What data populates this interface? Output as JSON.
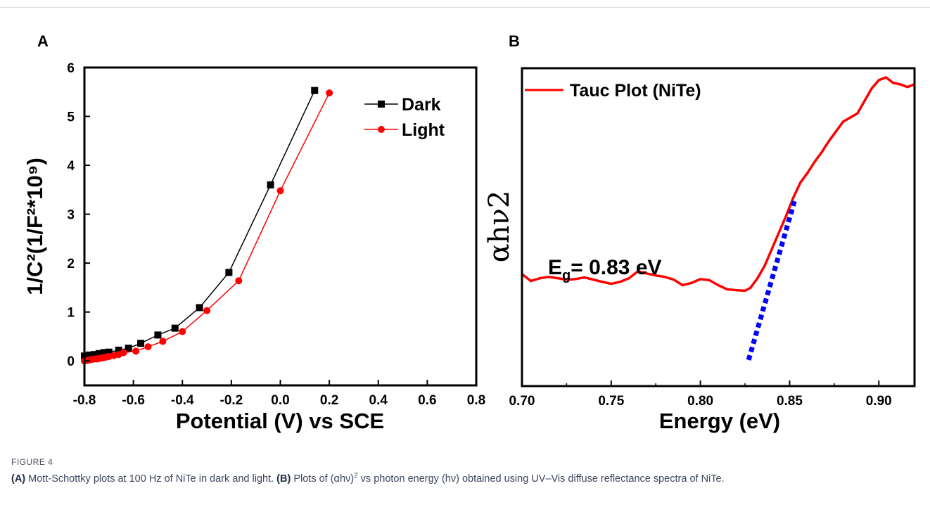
{
  "chart_data": [
    {
      "type": "line",
      "panel": "A",
      "xlabel": "Potential (V) vs SCE",
      "ylabel": "1/C²(1/F²*10⁹)",
      "xlim": [
        -0.8,
        0.8
      ],
      "ylim": [
        -0.5,
        6
      ],
      "xticks": [
        "-0.8",
        "-0.6",
        "-0.4",
        "-0.2",
        "0.0",
        "0.2",
        "0.4",
        "0.6",
        "0.8"
      ],
      "yticks": [
        "0",
        "1",
        "2",
        "3",
        "4",
        "5",
        "6"
      ],
      "legend_position": "top-right",
      "series": [
        {
          "name": "Dark",
          "color": "#000000",
          "marker": "square",
          "x": [
            -0.8,
            -0.78,
            -0.76,
            -0.74,
            -0.72,
            -0.7,
            -0.66,
            -0.62,
            -0.57,
            -0.5,
            -0.43,
            -0.33,
            -0.21,
            -0.04,
            0.14
          ],
          "y": [
            0.1,
            0.12,
            0.13,
            0.15,
            0.17,
            0.18,
            0.22,
            0.26,
            0.36,
            0.53,
            0.67,
            1.09,
            1.81,
            3.6,
            5.53
          ]
        },
        {
          "name": "Light",
          "color": "#ff0000",
          "marker": "circle",
          "x": [
            -0.8,
            -0.79,
            -0.78,
            -0.77,
            -0.76,
            -0.75,
            -0.74,
            -0.73,
            -0.72,
            -0.71,
            -0.7,
            -0.68,
            -0.66,
            -0.64,
            -0.59,
            -0.54,
            -0.48,
            -0.4,
            -0.3,
            -0.17,
            0.0,
            0.2
          ],
          "y": [
            0.0,
            0.01,
            0.02,
            0.03,
            0.04,
            0.04,
            0.05,
            0.06,
            0.07,
            0.08,
            0.09,
            0.11,
            0.13,
            0.17,
            0.2,
            0.29,
            0.4,
            0.6,
            1.03,
            1.64,
            3.48,
            5.48
          ]
        }
      ]
    },
    {
      "type": "line",
      "panel": "B",
      "xlabel": "Energy (eV)",
      "ylabel": "αhν2",
      "xlim": [
        0.7,
        0.92
      ],
      "ylim": [
        0,
        1
      ],
      "xticks": [
        "0.70",
        "0.75",
        "0.80",
        "0.85",
        "0.90"
      ],
      "yticks_shown": false,
      "legend_position": "top-left",
      "annotation": {
        "prefix": "E",
        "subscript": "g",
        "text": "= 0.83 eV"
      },
      "series": [
        {
          "name": "Tauc Plot (NiTe)",
          "color": "#ff0000",
          "x": [
            0.7,
            0.705,
            0.71,
            0.715,
            0.72,
            0.725,
            0.73,
            0.735,
            0.74,
            0.745,
            0.75,
            0.755,
            0.76,
            0.765,
            0.77,
            0.775,
            0.78,
            0.785,
            0.79,
            0.795,
            0.8,
            0.805,
            0.81,
            0.815,
            0.82,
            0.825,
            0.828,
            0.832,
            0.836,
            0.84,
            0.844,
            0.848,
            0.852,
            0.856,
            0.86,
            0.864,
            0.868,
            0.872,
            0.876,
            0.88,
            0.884,
            0.888,
            0.892,
            0.896,
            0.9,
            0.904,
            0.908,
            0.912,
            0.916,
            0.92
          ],
          "y": [
            0.29,
            0.265,
            0.275,
            0.28,
            0.275,
            0.27,
            0.272,
            0.278,
            0.27,
            0.262,
            0.255,
            0.262,
            0.275,
            0.3,
            0.292,
            0.285,
            0.28,
            0.27,
            0.25,
            0.258,
            0.272,
            0.268,
            0.25,
            0.235,
            0.232,
            0.23,
            0.24,
            0.275,
            0.32,
            0.38,
            0.44,
            0.5,
            0.565,
            0.62,
            0.655,
            0.695,
            0.73,
            0.77,
            0.805,
            0.84,
            0.855,
            0.87,
            0.915,
            0.96,
            0.99,
            1.0,
            0.98,
            0.975,
            0.965,
            0.975
          ]
        },
        {
          "name": "",
          "style": "dotted",
          "color": "#0000ff",
          "x": [
            0.827,
            0.853
          ],
          "y": [
            -0.02,
            0.56
          ]
        }
      ]
    }
  ],
  "panels": {
    "a": {
      "letter": "A"
    },
    "b": {
      "letter": "B"
    }
  },
  "caption": {
    "label": "FIGURE 4",
    "a_ref": "(A)",
    "a_text": " Mott-Schottky plots at 100 Hz of NiTe in dark and light. ",
    "b_ref": "(B)",
    "b_text_1": " Plots of (αhν)",
    "b_sup": "2",
    "b_text_2": " vs photon energy (hν) obtained using UV–Vis diffuse reflectance spectra of NiTe."
  }
}
